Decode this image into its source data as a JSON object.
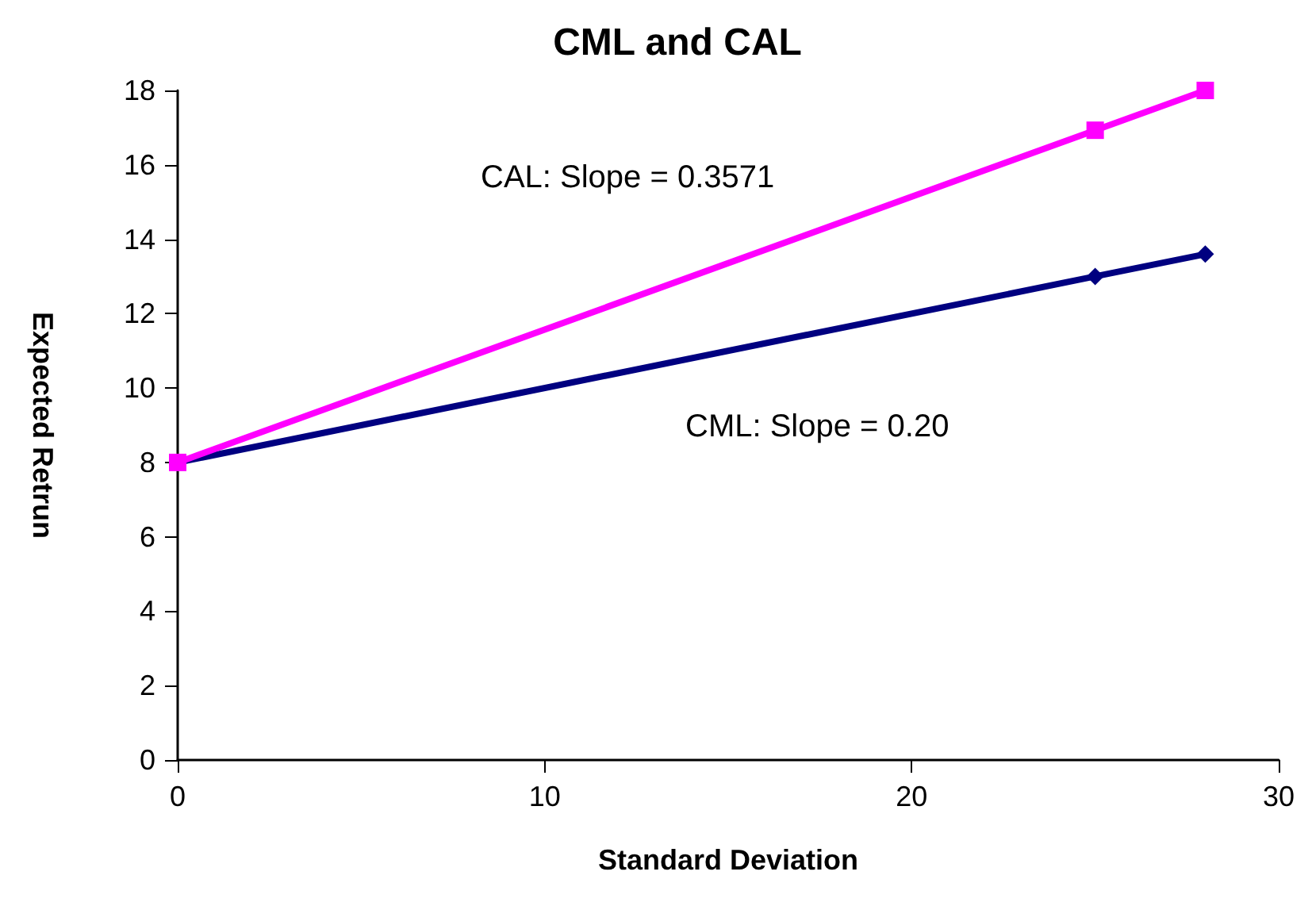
{
  "chart_data": {
    "type": "line",
    "title": "CML and CAL",
    "xlabel": "Standard Deviation",
    "ylabel": "Expected Retrun",
    "xlim": [
      0,
      30
    ],
    "xticks": [
      0,
      10,
      20,
      30
    ],
    "ylim": [
      0,
      18
    ],
    "yticks": [
      0,
      2,
      4,
      6,
      8,
      10,
      12,
      14,
      16,
      18
    ],
    "grid": false,
    "series": [
      {
        "color": "#000080",
        "marker": "diamond",
        "x": [
          0,
          25,
          28
        ],
        "values": [
          8,
          13,
          13.6
        ]
      },
      {
        "color": "#ff00ff",
        "marker": "square",
        "x": [
          0,
          25,
          28
        ],
        "values": [
          8,
          16.93,
          18
        ]
      }
    ],
    "annotations": [
      "CAL: Slope = 0.3571",
      "CML: Slope = 0.20"
    ]
  }
}
